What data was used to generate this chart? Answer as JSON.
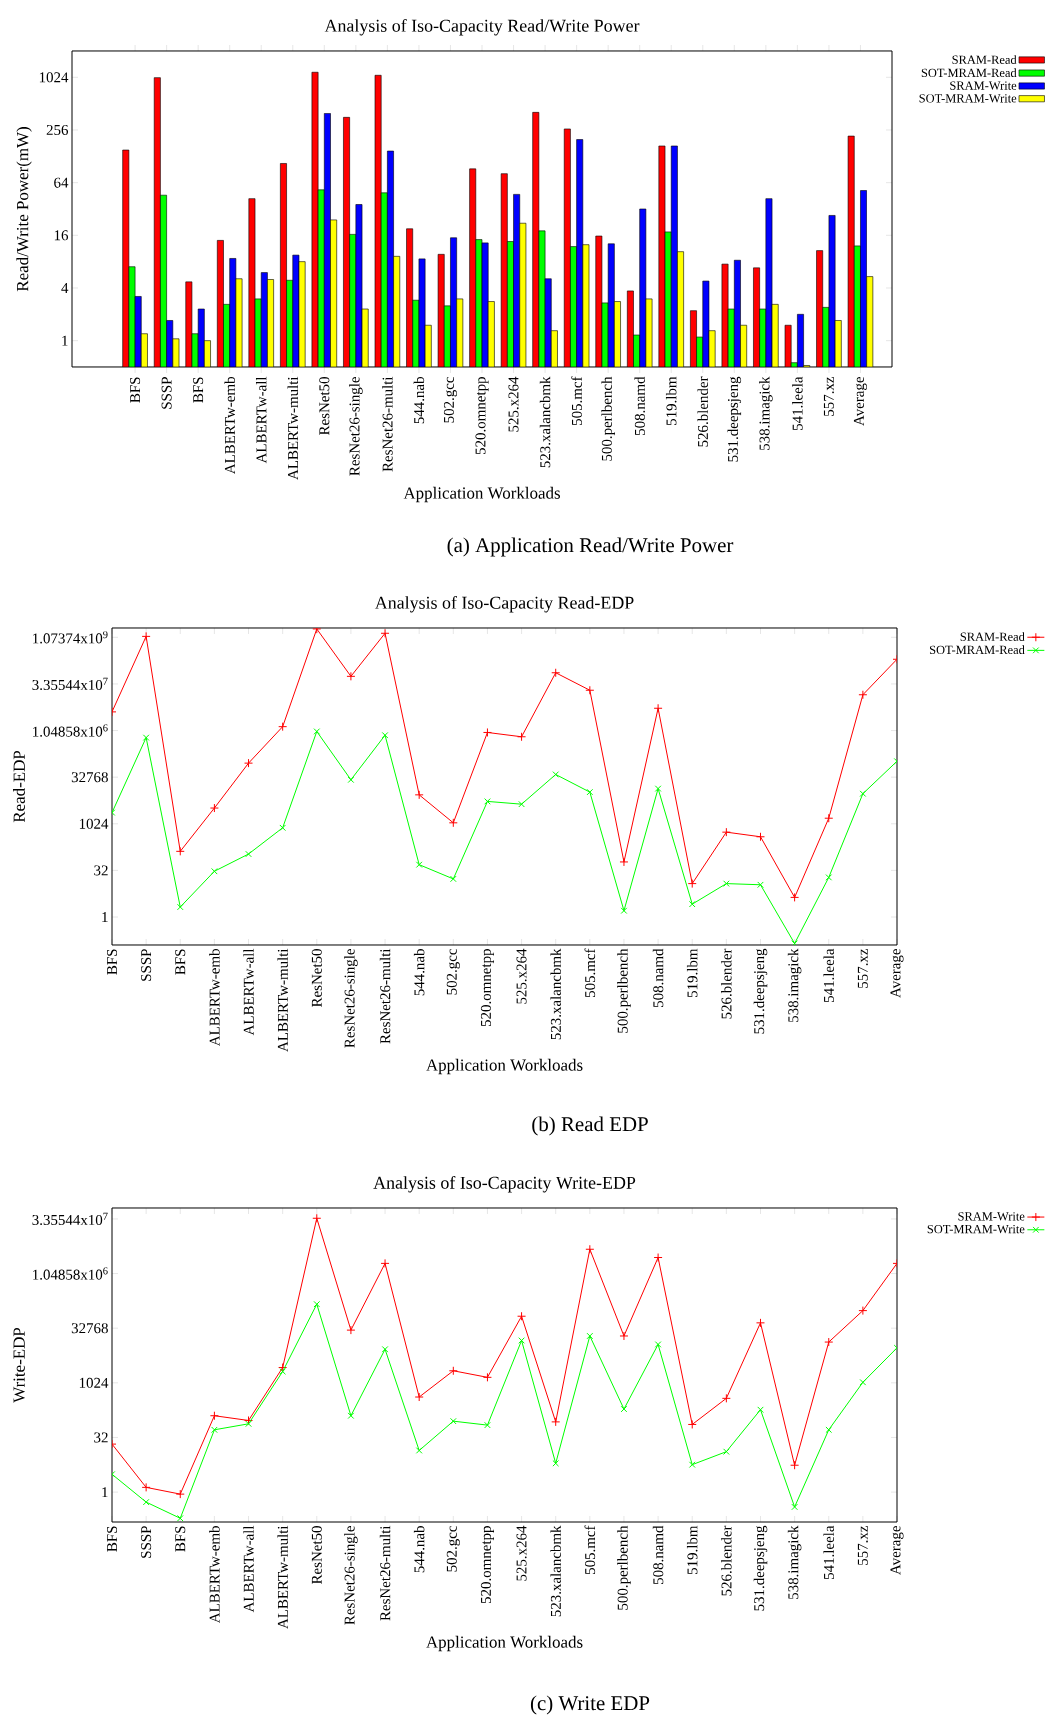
{
  "chart_data": [
    {
      "type": "bar",
      "title": "Analysis of Iso-Capacity Read/Write Power",
      "xlabel": "Application Workloads",
      "ylabel": "Read/Write Power(mW)",
      "log": "y",
      "legend": "right",
      "categories": [
        "BFS",
        "SSSP",
        "BFS",
        "ALBERTw-emb",
        "ALBERTw-all",
        "ALBERTw-multi",
        "ResNet50",
        "ResNet26-single",
        "ResNet26-multi",
        "544.nab",
        "502.gcc",
        "520.omnetpp",
        "525.x264",
        "523.xalancbmk",
        "505.mcf",
        "500.perlbench",
        "508.namd",
        "519.lbm",
        "526.blender",
        "531.deepsjeng",
        "538.imagick",
        "541.leela",
        "557.xz",
        "Average"
      ],
      "ylim": [
        0.5,
        2048
      ],
      "yticks": [
        1,
        4,
        16,
        64,
        256,
        1024
      ],
      "series": [
        {
          "name": "SRAM-Read",
          "color": "#ff0000",
          "values": [
            151,
            1015,
            4.7,
            14,
            42,
            106,
            1170,
            357,
            1080,
            19,
            9.7,
            92,
            81,
            407,
            263,
            15.7,
            3.7,
            168,
            2.2,
            7.5,
            6.8,
            1.5,
            10.7,
            218
          ]
        },
        {
          "name": "SOT-MRAM-Read",
          "color": "#00ff00",
          "values": [
            7,
            46,
            1.2,
            2.6,
            3,
            4.9,
            53,
            16.4,
            49,
            2.9,
            2.5,
            14.3,
            13.6,
            18,
            11.9,
            2.7,
            1.16,
            17.5,
            1.1,
            2.3,
            2.3,
            0.56,
            2.4,
            12.1
          ]
        },
        {
          "name": "SRAM-Write",
          "color": "#0000ff",
          "values": [
            3.2,
            1.7,
            2.3,
            8.7,
            6,
            9.5,
            396,
            36,
            147,
            8.6,
            15,
            13.1,
            47,
            5.1,
            199,
            12.8,
            32,
            168,
            4.8,
            8.3,
            42,
            2,
            27,
            52
          ]
        },
        {
          "name": "SOT-MRAM-Write",
          "color": "#ffff00",
          "values": [
            1.2,
            1.05,
            1,
            5.1,
            5,
            8,
            24,
            2.3,
            9.2,
            1.5,
            3,
            2.8,
            22,
            1.3,
            12.5,
            2.8,
            3,
            10.4,
            1.3,
            1.5,
            2.6,
            0.52,
            1.7,
            5.4
          ]
        }
      ],
      "annotations": [
        "(a) Application Read/Write Power"
      ]
    },
    {
      "type": "line",
      "title": "Analysis of Iso-Capacity Read-EDP",
      "xlabel": "Application Workloads",
      "ylabel": "Read-EDP",
      "log": "y",
      "legend": "right",
      "marker": "cross",
      "categories": [
        "BFS",
        "SSSP",
        "BFS",
        "ALBERTw-emb",
        "ALBERTw-all",
        "ALBERTw-multi",
        "ResNet50",
        "ResNet26-single",
        "ResNet26-multi",
        "544.nab",
        "502.gcc",
        "520.omnetpp",
        "525.x264",
        "523.xalancbmk",
        "505.mcf",
        "500.perlbench",
        "508.namd",
        "519.lbm",
        "526.blender",
        "531.deepsjeng",
        "538.imagick",
        "541.leela",
        "557.xz",
        "Average"
      ],
      "ylim": [
        0.125,
        2147483648
      ],
      "yticks": [
        1,
        32,
        1024,
        32768,
        {
          "value": 1048576,
          "label": "1.04858x10$^{6}$"
        },
        {
          "value": 33554432,
          "label": "3.35544x10$^{7}$"
        },
        {
          "value": 1073741824,
          "label": "1.07374x10$^{9}$"
        }
      ],
      "series": [
        {
          "name": "SRAM-Read",
          "color": "#ff0000",
          "values": [
            4200000,
            1150000000,
            132,
            3300,
            93000,
            1400000,
            2000000000,
            59000000,
            1450000000,
            8800,
            1100,
            910000,
            660000,
            77000000,
            21000000,
            60,
            5500000,
            12,
            550,
            390,
            4.3,
            1550,
            15000000,
            210000000
          ]
        },
        {
          "name": "SOT-MRAM-Read",
          "color": "#00ff00",
          "values": [
            2350,
            620000,
            2.1,
            30,
            108,
            760,
            980000,
            27000,
            740000,
            49,
            17,
            5400,
            4400,
            40000,
            10800,
            1.6,
            14000,
            2.6,
            12,
            11,
            0.14,
            19,
            9600,
            107000
          ]
        }
      ],
      "annotations": [
        "(b) Read EDP"
      ]
    },
    {
      "type": "line",
      "title": "Analysis of Iso-Capacity Write-EDP",
      "xlabel": "Application Workloads",
      "ylabel": "Write-EDP",
      "log": "y",
      "legend": "right",
      "marker": "cross",
      "categories": [
        "BFS",
        "SSSP",
        "BFS",
        "ALBERTw-emb",
        "ALBERTw-all",
        "ALBERTw-multi",
        "ResNet50",
        "ResNet26-single",
        "ResNet26-multi",
        "544.nab",
        "502.gcc",
        "520.omnetpp",
        "525.x264",
        "523.xalancbmk",
        "505.mcf",
        "500.perlbench",
        "508.namd",
        "519.lbm",
        "526.blender",
        "531.deepsjeng",
        "538.imagick",
        "541.leela",
        "557.xz",
        "Average"
      ],
      "ylim": [
        0.15,
        67108864
      ],
      "yticks": [
        1,
        32,
        1024,
        32768,
        {
          "value": 1048576,
          "label": "1.04858x10$^{6}$"
        },
        {
          "value": 33554432,
          "label": "3.35544x10$^{7}$"
        }
      ],
      "series": [
        {
          "name": "SRAM-Write",
          "color": "#ff0000",
          "values": [
            21,
            1.35,
            0.88,
            127,
            94,
            2700,
            35000000,
            29000,
            2000000,
            416,
            2200,
            1450,
            70000,
            86,
            4900000,
            20000,
            2900000,
            73,
            383,
            46000,
            5.5,
            13600,
            100000,
            2000000
          ]
        },
        {
          "name": "SOT-MRAM-Write",
          "color": "#00ff00",
          "values": [
            3.1,
            0.53,
            0.19,
            52,
            76,
            2100,
            150000,
            127,
            8600,
            14,
            90,
            70,
            15000,
            6.2,
            20000,
            194,
            11700,
            5.7,
            13,
            186,
            0.39,
            52,
            1060,
            9400
          ]
        }
      ],
      "annotations": [
        "(c) Write EDP"
      ]
    }
  ]
}
